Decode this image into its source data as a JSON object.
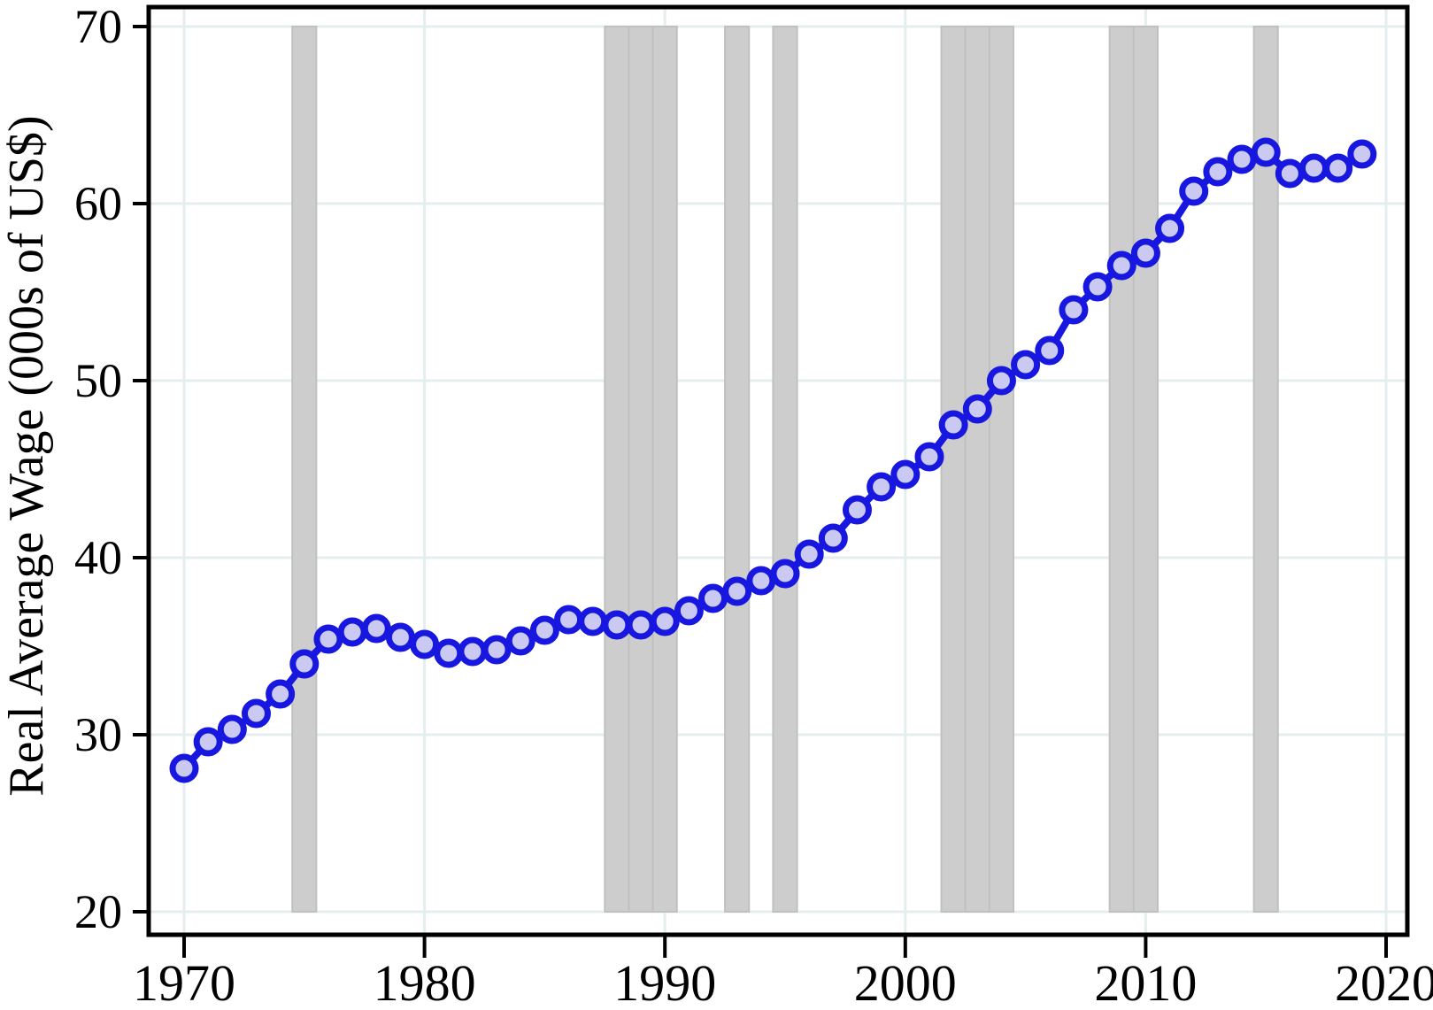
{
  "chart_data": {
    "type": "line",
    "title": "",
    "xlabel": "",
    "ylabel": "Real Average Wage (000s of US$)",
    "series_name": "Real Average Wage",
    "marker": "circle",
    "grid": true,
    "legend_position": "none",
    "x": [
      1970,
      1971,
      1972,
      1973,
      1974,
      1975,
      1976,
      1977,
      1978,
      1979,
      1980,
      1981,
      1982,
      1983,
      1984,
      1985,
      1986,
      1987,
      1988,
      1989,
      1990,
      1991,
      1992,
      1993,
      1994,
      1995,
      1996,
      1997,
      1998,
      1999,
      2000,
      2001,
      2002,
      2003,
      2004,
      2005,
      2006,
      2007,
      2008,
      2009,
      2010,
      2011,
      2012,
      2013,
      2014,
      2015,
      2016,
      2017,
      2018,
      2019
    ],
    "values": [
      28.1,
      29.6,
      30.3,
      31.2,
      32.3,
      34.0,
      35.4,
      35.8,
      36.0,
      35.5,
      35.1,
      34.6,
      34.7,
      34.8,
      35.3,
      35.9,
      36.5,
      36.4,
      36.2,
      36.2,
      36.4,
      37.0,
      37.7,
      38.1,
      38.7,
      39.1,
      40.2,
      41.1,
      42.7,
      44.0,
      44.7,
      45.7,
      47.5,
      48.4,
      50.0,
      50.9,
      51.7,
      54.0,
      55.3,
      56.5,
      57.2,
      58.6,
      60.7,
      61.8,
      62.5,
      62.9,
      61.7,
      62.0,
      62.0,
      62.8
    ],
    "x_ticks": [
      1970,
      1980,
      1990,
      2000,
      2010,
      2020
    ],
    "y_ticks": [
      20,
      30,
      40,
      50,
      60,
      70
    ],
    "ylim": [
      20,
      70
    ],
    "xlim": [
      1968.5,
      2020.9
    ],
    "shaded_years": [
      1975,
      1988,
      1989,
      1990,
      1993,
      1995,
      2002,
      2003,
      2004,
      2009,
      2010,
      2015
    ],
    "colors": {
      "line": "#1717e0",
      "marker_fill": "#c9c9f2",
      "marker_stroke": "#1717e0",
      "band_fill": "#cdcdcd",
      "band_edge": "#c0c0c0",
      "grid": "#e4eeee",
      "axis": "#000000",
      "background": "#ffffff"
    }
  }
}
